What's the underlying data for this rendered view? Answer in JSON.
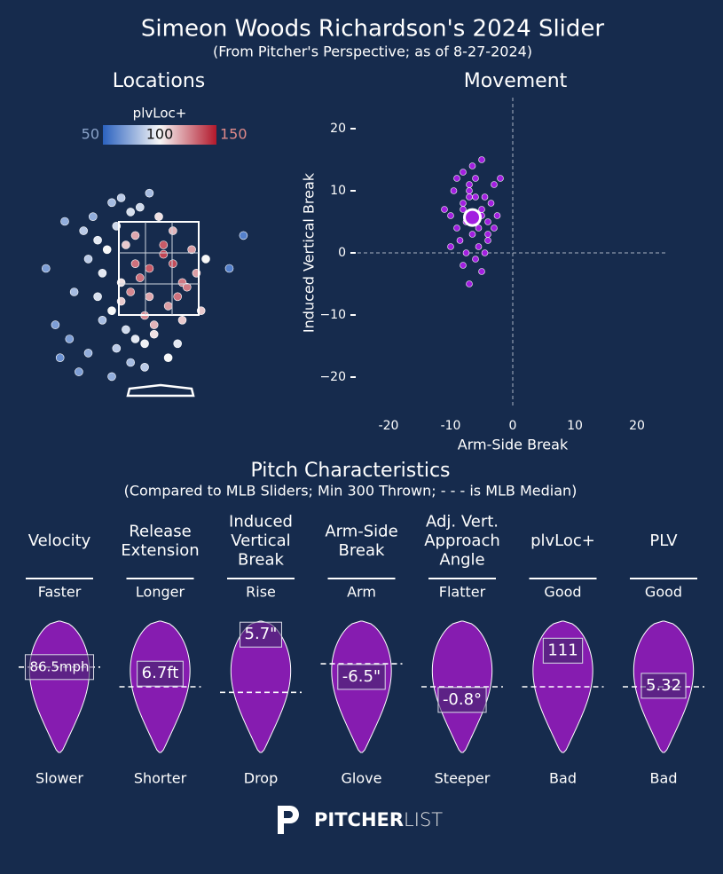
{
  "header": {
    "title": "Simeon Woods Richardson's 2024 Slider",
    "subtitle": "(From Pitcher's Perspective; as of 8-27-2024)"
  },
  "chart_data": [
    {
      "type": "scatter",
      "title": "Locations",
      "colorbar_label": "plvLoc+",
      "clim": [
        50,
        150
      ],
      "cticks": [
        50,
        100,
        150
      ],
      "colors": [
        "#2b62c0",
        "#f7f7f7",
        "#b2182b"
      ],
      "xlim": [
        -2.5,
        2.5
      ],
      "ylim": [
        0,
        4.5
      ],
      "x": [
        -0.6,
        -0.4,
        -0.2,
        0.1,
        0.3,
        0.5,
        0.7,
        -0.8,
        -1.0,
        -1.2,
        -1.5,
        -1.8,
        -2.4,
        -0.3,
        -0.1,
        0.2,
        0.4,
        0.6,
        -0.5,
        -0.7,
        -0.9,
        -1.1,
        -1.3,
        -1.6,
        -2.0,
        0.0,
        0.3,
        -0.2,
        -0.4,
        -0.6,
        -0.8,
        -1.0,
        -1.4,
        -2.2,
        0.5,
        0.8,
        1.0,
        -0.1,
        -0.3,
        -0.5,
        -0.7,
        -0.9,
        -1.2,
        -1.5,
        -1.9,
        0.2,
        0.4,
        -0.3,
        -0.6,
        -1.0,
        -1.7,
        -2.1,
        0.9,
        1.5,
        1.8,
        -0.5,
        -0.2,
        -0.8,
        -1.3,
        0.1
      ],
      "y": [
        2.0,
        2.3,
        2.5,
        2.8,
        2.6,
        2.2,
        2.9,
        1.8,
        1.6,
        2.4,
        2.7,
        2.0,
        2.5,
        1.5,
        1.3,
        1.7,
        1.9,
        2.1,
        3.2,
        3.0,
        3.4,
        2.9,
        3.1,
        3.3,
        3.5,
        3.6,
        3.3,
        4.1,
        3.8,
        3.7,
        4.0,
        3.9,
        3.6,
        1.3,
        1.4,
        2.4,
        2.7,
        1.1,
        0.9,
        1.0,
        1.2,
        0.8,
        1.4,
        0.7,
        1.0,
        0.6,
        0.9,
        0.4,
        0.5,
        0.2,
        0.3,
        0.6,
        1.6,
        2.5,
        3.2,
        2.6,
        1.9,
        2.2,
        1.9,
        3.0
      ],
      "color_values": [
        125,
        130,
        135,
        140,
        138,
        128,
        120,
        110,
        100,
        95,
        85,
        80,
        70,
        125,
        115,
        120,
        130,
        128,
        118,
        110,
        90,
        100,
        95,
        85,
        75,
        105,
        115,
        80,
        90,
        92,
        85,
        80,
        75,
        70,
        110,
        120,
        100,
        105,
        98,
        95,
        90,
        85,
        80,
        75,
        70,
        100,
        95,
        85,
        80,
        75,
        70,
        65,
        110,
        60,
        60,
        130,
        118,
        105,
        92,
        135
      ]
    },
    {
      "type": "scatter",
      "title": "Movement",
      "x_label": "Arm-Side Break",
      "y_label": "Induced Vertical Break",
      "xlim": [
        -25,
        25
      ],
      "ylim": [
        -25,
        25
      ],
      "xticks": [
        -20,
        -10,
        0,
        10,
        20
      ],
      "yticks": [
        {
          "value": -20,
          "label": "−20"
        },
        {
          "value": -10,
          "label": "−10"
        },
        0,
        10,
        20
      ],
      "reference_lines": {
        "x": 0,
        "y": 0
      },
      "color": "#a21fe0",
      "x": [
        -8,
        -7,
        -6,
        -5,
        -4,
        -9,
        -10,
        -6.5,
        -5.5,
        -7.5,
        -8.5,
        -4.5,
        -3,
        -11,
        -6,
        -5,
        -7,
        -8,
        -9,
        -4,
        -6,
        -5,
        -7,
        -3.5,
        -2,
        -10,
        -8,
        -6,
        -5.5,
        -7,
        -9.5,
        -4,
        -6.5,
        -5,
        -8,
        -7.5,
        -6,
        -4.5,
        -3,
        -2.5
      ],
      "y": [
        8,
        10,
        12,
        7,
        5,
        4,
        6,
        3,
        1,
        0,
        2,
        9,
        11,
        7,
        -1,
        -3,
        -5,
        13,
        12,
        3,
        6,
        15,
        9,
        8,
        12,
        1,
        -2,
        5,
        4,
        11,
        10,
        2,
        14,
        6,
        7,
        5,
        9,
        0,
        4,
        6
      ],
      "average": {
        "x": -6.5,
        "y": 5.7
      }
    },
    {
      "type": "violin",
      "title": "Pitch Characteristics",
      "subtitle": "(Compared to MLB Sliders; Min 300 Thrown; - - - is MLB Median)",
      "color": "#861cb0",
      "metrics": [
        {
          "name": [
            "Velocity"
          ],
          "high": "Faster",
          "low": "Slower",
          "value": 86.5,
          "value_label": "86.5mph",
          "median": 86.5,
          "ylim": [
            80,
            90
          ]
        },
        {
          "name": [
            "Release",
            "Extension"
          ],
          "high": "Longer",
          "low": "Shorter",
          "value": 6.7,
          "value_label": "6.7ft",
          "median": 6.5,
          "ylim": [
            5.5,
            7.5
          ]
        },
        {
          "name": [
            "Induced",
            "Vertical",
            "Break"
          ],
          "high": "Rise",
          "low": "Drop",
          "value": 5.7,
          "value_label": "5.7\"",
          "median": -2,
          "ylim": [
            -10,
            7.5
          ]
        },
        {
          "name": [
            "Arm-Side",
            "Break"
          ],
          "high": "Arm",
          "low": "Glove",
          "value": -6.5,
          "value_label": "-6.5\"",
          "median": -4.5,
          "ylim": [
            -18,
            2
          ]
        },
        {
          "name": [
            "Adj. Vert.",
            "Approach",
            "Angle"
          ],
          "high": "Flatter",
          "low": "Steeper",
          "value": -0.8,
          "value_label": "-0.8°",
          "median": -0.5,
          "ylim": [
            -2,
            1
          ]
        },
        {
          "name": [
            "plvLoc+"
          ],
          "high": "Good",
          "low": "Bad",
          "value": 111,
          "median": 100,
          "ylim": [
            80,
            120
          ]
        },
        {
          "name": [
            "PLV"
          ],
          "high": "Good",
          "low": "Bad",
          "value": 5.32,
          "median": 5.3,
          "ylim": [
            4,
            6.6
          ]
        }
      ]
    }
  ],
  "footer": {
    "brand_bold": "PITCHER",
    "brand_light": "LIST"
  }
}
